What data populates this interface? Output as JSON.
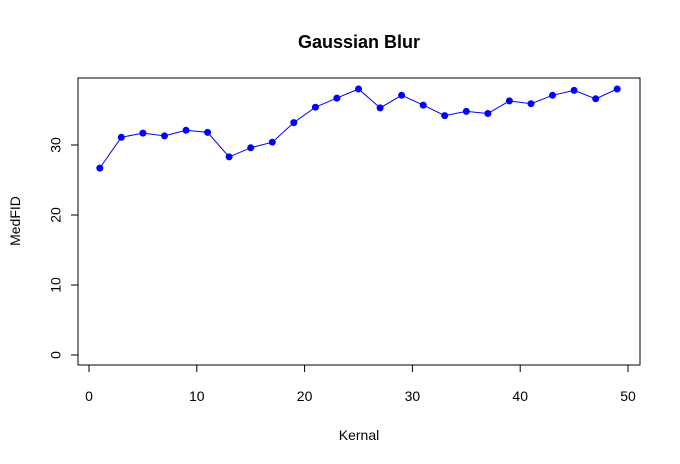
{
  "chart_data": {
    "type": "line",
    "title": "Gaussian Blur",
    "xlabel": "Kernal",
    "ylabel": "MedFID",
    "xlim": [
      0,
      50
    ],
    "ylim": [
      0,
      38
    ],
    "x_ticks": [
      0,
      10,
      20,
      30,
      40,
      50
    ],
    "y_ticks": [
      0,
      10,
      20,
      30
    ],
    "grid": false,
    "series": [
      {
        "color": "#0000ff",
        "marker": "filled-circle",
        "x": [
          1,
          3,
          5,
          7,
          9,
          11,
          13,
          15,
          17,
          19,
          21,
          23,
          25,
          27,
          29,
          31,
          33,
          35,
          37,
          39,
          41,
          43,
          45,
          47,
          49
        ],
        "y": [
          26.7,
          31.1,
          31.7,
          31.3,
          32.1,
          31.8,
          28.3,
          29.6,
          30.4,
          33.2,
          35.4,
          36.7,
          38.0,
          35.3,
          37.1,
          35.7,
          34.2,
          34.8,
          34.5,
          36.3,
          35.9,
          37.1,
          37.8,
          36.6,
          38.0
        ]
      }
    ]
  }
}
